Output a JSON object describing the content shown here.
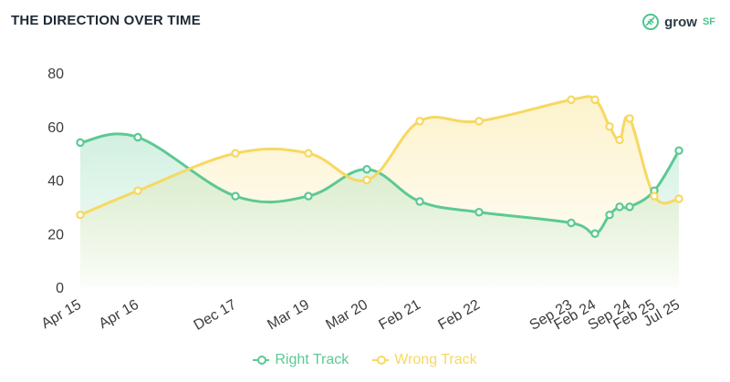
{
  "header": {
    "title": "THE DIRECTION OVER TIME",
    "logo_text": "grow",
    "logo_suffix": "SF",
    "logo_icon": "leaf-icon"
  },
  "colors": {
    "right_track": "#5cc993",
    "wrong_track": "#f7d861",
    "tick_text": "#3c3c3c",
    "title_text": "#1f2a35"
  },
  "chart_data": {
    "type": "area",
    "title": "THE DIRECTION OVER TIME",
    "xlabel": "",
    "ylabel": "",
    "ylim": [
      0,
      80
    ],
    "yticks": [
      0,
      20,
      40,
      60,
      80
    ],
    "grid": false,
    "legend_position": "bottom-center",
    "x": [
      "Apr 15",
      "Apr 16",
      "Dec 17",
      "Mar 19",
      "Mar 20",
      "Feb 21",
      "Feb 22",
      "Sep 23",
      "Feb 24",
      "Sep 24",
      "Feb 25",
      "Jul 25"
    ],
    "series": [
      {
        "name": "Right Track",
        "color": "#5cc993",
        "points": [
          {
            "x": "Apr 15",
            "y": 54
          },
          {
            "x": "Apr 16",
            "y": 56
          },
          {
            "x": "Dec 17",
            "y": 34
          },
          {
            "x": "Mar 19",
            "y": 34
          },
          {
            "x": "Mar 20",
            "y": 44
          },
          {
            "x": "Feb 21",
            "y": 32
          },
          {
            "x": "Feb 22",
            "y": 28
          },
          {
            "x": "Sep 23",
            "y": 24
          },
          {
            "x": "Feb 24",
            "y": 20
          },
          {
            "y": 27
          },
          {
            "y": 30
          },
          {
            "x": "Sep 24",
            "y": 30
          },
          {
            "x": "Feb 25",
            "y": 36
          },
          {
            "x": "Jul 25",
            "y": 51
          }
        ]
      },
      {
        "name": "Wrong Track",
        "color": "#f7d861",
        "points": [
          {
            "x": "Apr 15",
            "y": 27
          },
          {
            "x": "Apr 16",
            "y": 36
          },
          {
            "x": "Dec 17",
            "y": 50
          },
          {
            "x": "Mar 19",
            "y": 50
          },
          {
            "x": "Mar 20",
            "y": 40
          },
          {
            "x": "Feb 21",
            "y": 62
          },
          {
            "x": "Feb 22",
            "y": 62
          },
          {
            "x": "Sep 23",
            "y": 70
          },
          {
            "x": "Feb 24",
            "y": 70
          },
          {
            "y": 60
          },
          {
            "y": 55
          },
          {
            "x": "Sep 24",
            "y": 63
          },
          {
            "x": "Feb 25",
            "y": 34
          },
          {
            "x": "Jul 25",
            "y": 33
          }
        ]
      }
    ]
  }
}
